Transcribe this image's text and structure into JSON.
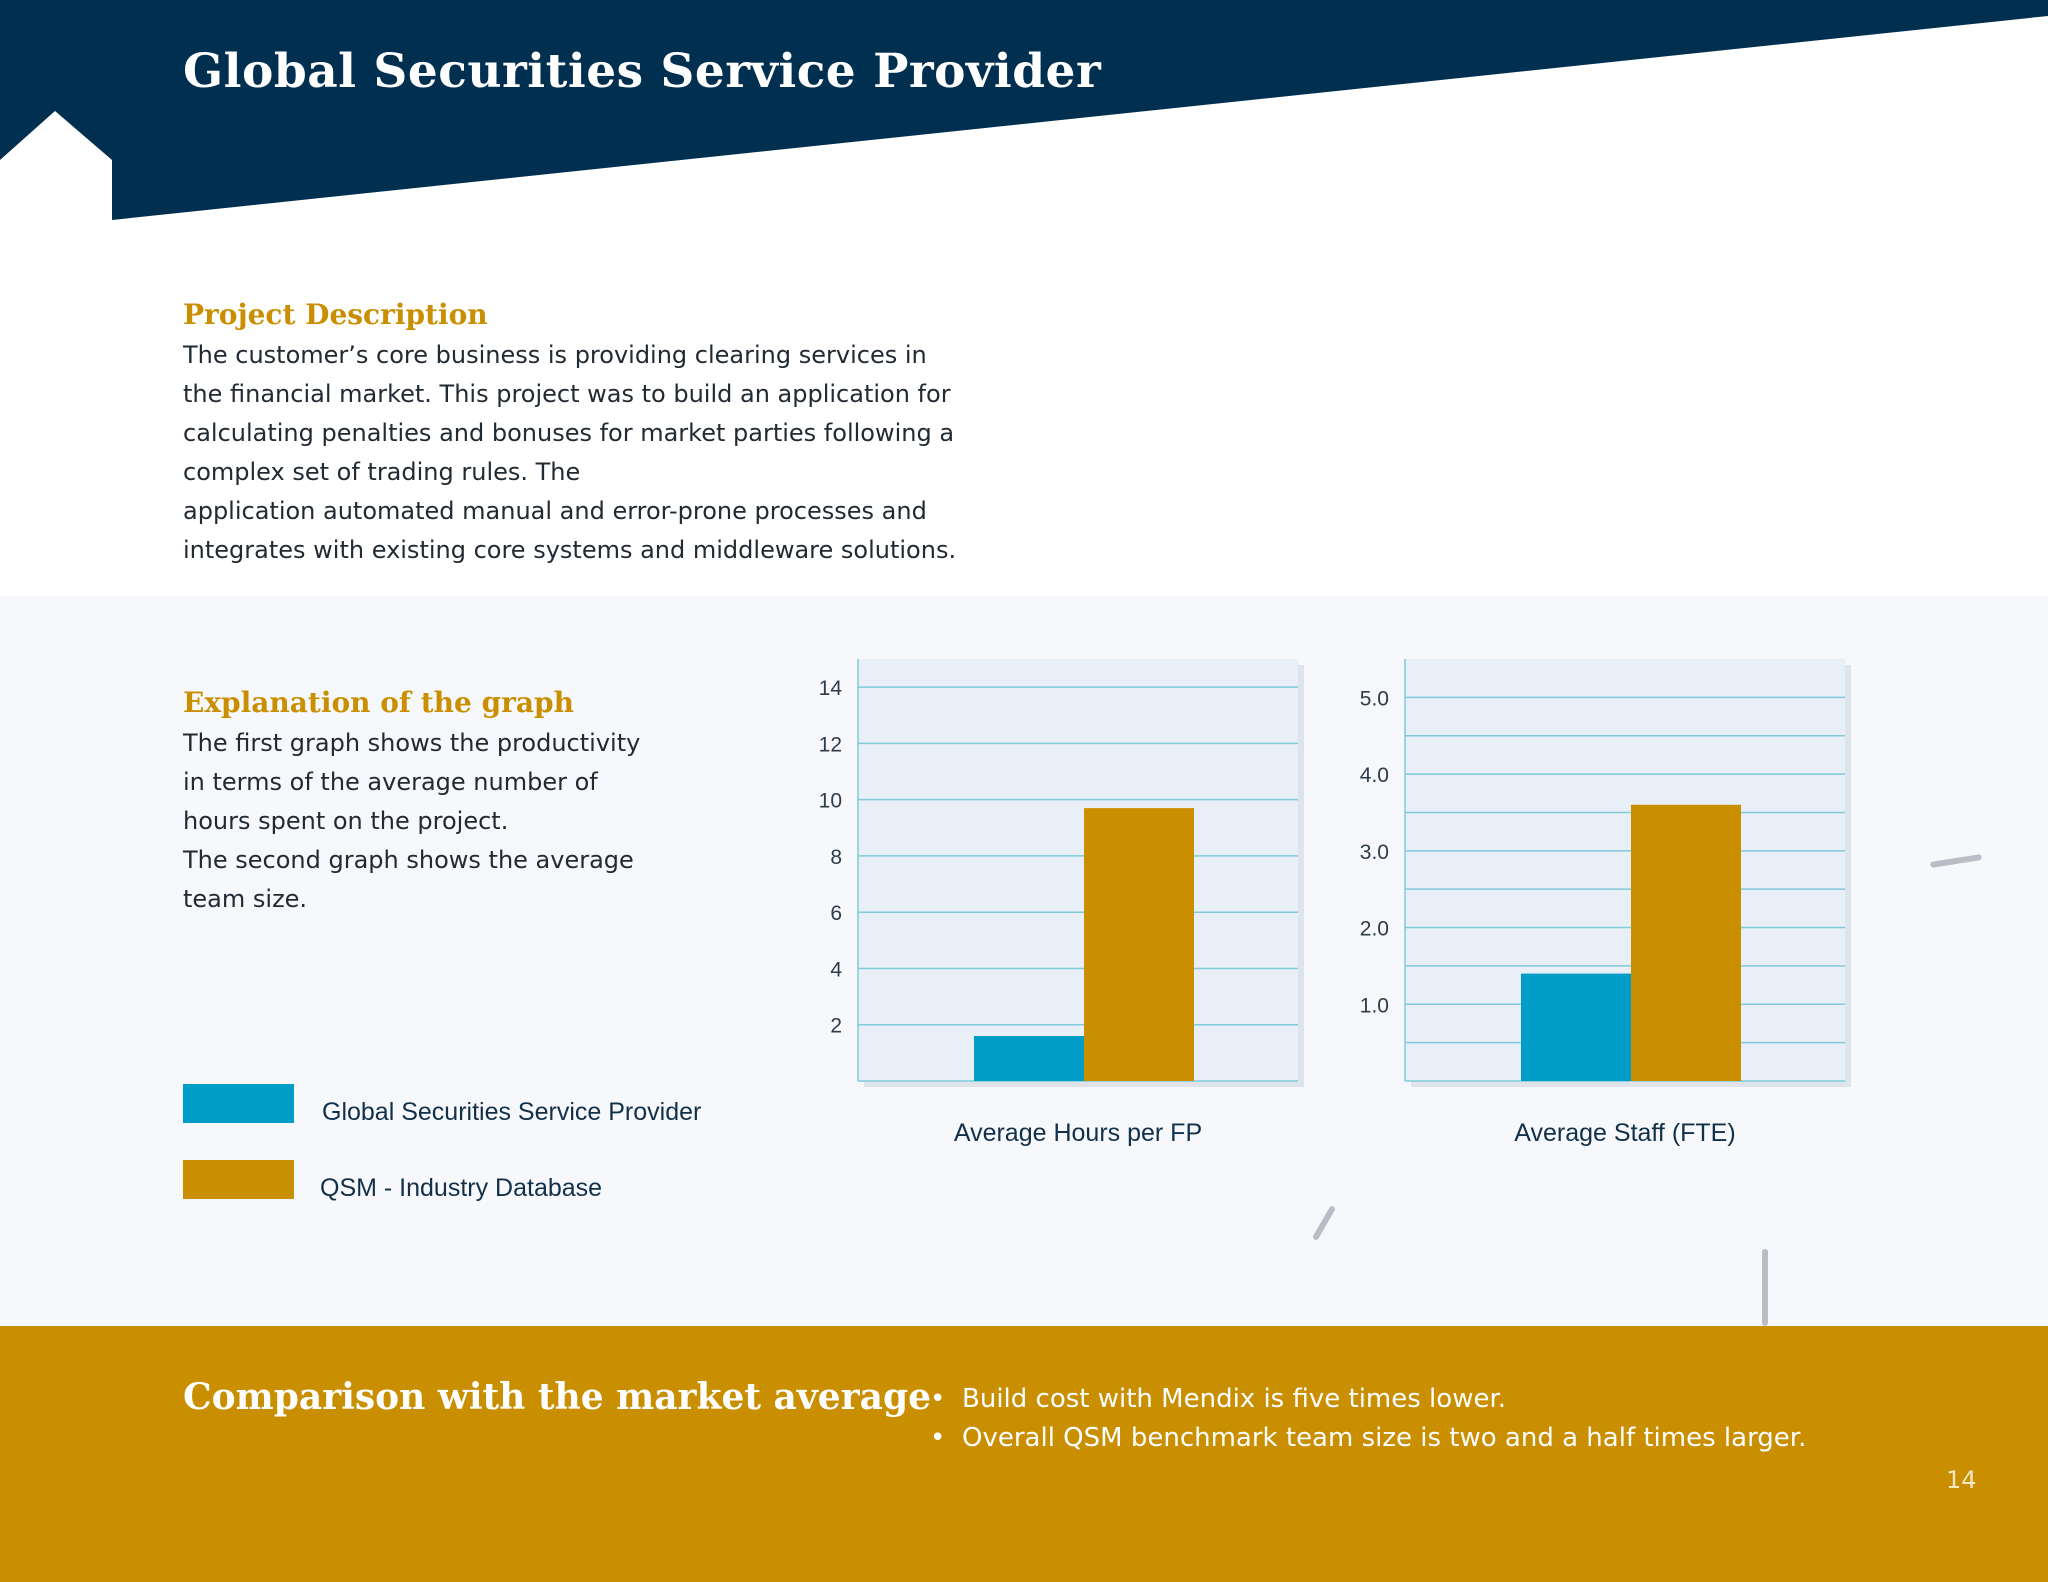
{
  "page_title": "Global Securities Service Provider",
  "project": {
    "heading": "Project Description",
    "lines": [
      "The customer’s core business is providing clearing services in",
      "the financial market. This project was to build an application for",
      "calculating penalties and bonuses for market parties following a",
      "complex set of trading rules. The",
      "application automated manual and error-prone processes and",
      "integrates with existing core systems and middleware solutions."
    ]
  },
  "explanation": {
    "heading": "Explanation of the graph",
    "lines": [
      "The first graph shows the productivity",
      "in terms of the average number of",
      "hours spent on the project.",
      "The second graph shows the average",
      "team size."
    ]
  },
  "legend": [
    {
      "label": "Global Securities Service Provider",
      "color": "#009dc8"
    },
    {
      "label": "QSM - Industry Database",
      "color": "#c98f00"
    }
  ],
  "chart_data": [
    {
      "type": "bar",
      "xlabel": "Average Hours per FP",
      "categories": [
        ""
      ],
      "series": [
        {
          "name": "Global Securities Service Provider",
          "values": [
            1.6
          ]
        },
        {
          "name": "QSM - Industry Database",
          "values": [
            9.7
          ]
        }
      ],
      "ylim": [
        0,
        15
      ],
      "yticks": [
        2,
        4,
        6,
        8,
        10,
        12,
        14
      ],
      "ytick_labels": [
        "2",
        "4",
        "6",
        "8",
        "10",
        "12",
        "14"
      ],
      "gridlines": [
        2,
        4,
        6,
        8,
        10,
        12,
        14
      ],
      "grid": true,
      "colors": [
        "#009dc8",
        "#c98f00"
      ]
    },
    {
      "type": "bar",
      "xlabel": "Average Staff (FTE)",
      "categories": [
        ""
      ],
      "series": [
        {
          "name": "Global Securities Service Provider",
          "values": [
            1.4
          ]
        },
        {
          "name": "QSM - Industry Database",
          "values": [
            3.6
          ]
        }
      ],
      "ylim": [
        0,
        5.5
      ],
      "yticks": [
        1,
        2,
        3,
        4,
        5
      ],
      "ytick_labels": [
        "1.0",
        "2.0",
        "3.0",
        "4.0",
        "5.0"
      ],
      "gridlines": [
        0.5,
        1,
        1.5,
        2,
        2.5,
        3,
        3.5,
        4,
        4.5,
        5
      ],
      "grid": true,
      "colors": [
        "#009dc8",
        "#c98f00"
      ]
    }
  ],
  "comparison": {
    "heading": "Comparison with the market average",
    "bullets": [
      "Build cost with Mendix is five times lower.",
      "Overall QSM benchmark team size is two and a half times larger."
    ]
  },
  "page_number": "14",
  "colors": {
    "navy": "#002f4f",
    "gold": "#c98f00",
    "blue": "#009dc8",
    "plot_bg": "#e8eff6",
    "grid": "#7fcbdc"
  }
}
